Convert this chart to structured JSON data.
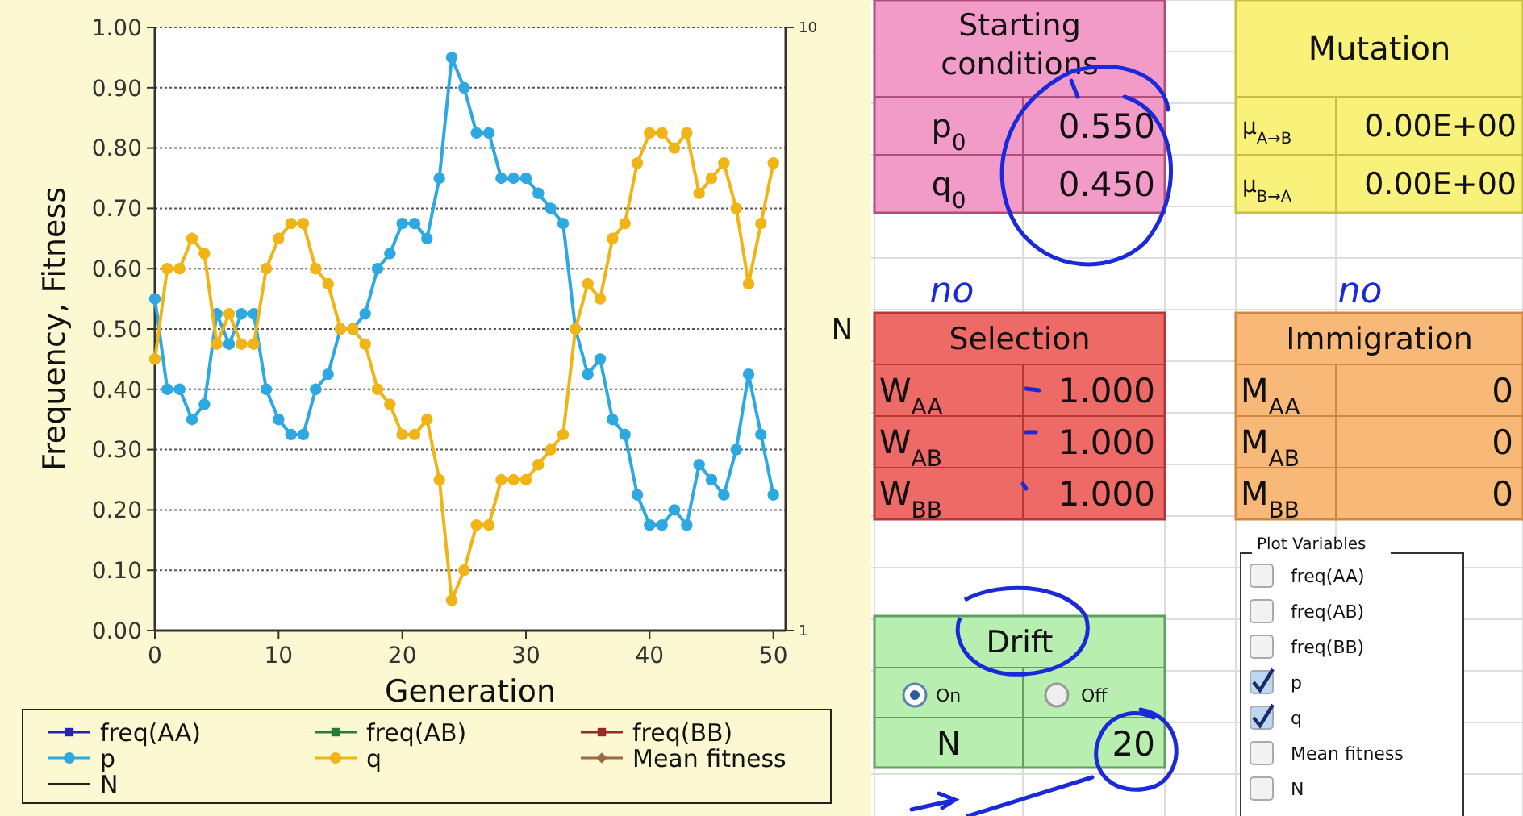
{
  "chart_data": [
    {
      "type": "line",
      "xlabel": "Generation",
      "ylabel": "Frequency, Fitness",
      "y2label": "N",
      "x": [
        0,
        1,
        2,
        3,
        4,
        5,
        6,
        7,
        8,
        9,
        10,
        11,
        12,
        13,
        14,
        15,
        16,
        17,
        18,
        19,
        20,
        21,
        22,
        23,
        24,
        25,
        26,
        27,
        28,
        29,
        30,
        31,
        32,
        33,
        34,
        35,
        36,
        37,
        38,
        39,
        40,
        41,
        42,
        43,
        44,
        45,
        46,
        47,
        48,
        49,
        50
      ],
      "xlim": [
        0,
        51
      ],
      "xticks": [
        0,
        10,
        20,
        30,
        40,
        50
      ],
      "ylim": [
        0,
        1
      ],
      "yticks": [
        {
          "value": 0,
          "label": "0.00"
        },
        {
          "value": 0.1,
          "label": "0.10"
        },
        {
          "value": 0.2,
          "label": "0.20"
        },
        {
          "value": 0.3,
          "label": "0.30"
        },
        {
          "value": 0.4,
          "label": "0.40"
        },
        {
          "value": 0.5,
          "label": "0.50"
        },
        {
          "value": 0.6,
          "label": "0.60"
        },
        {
          "value": 0.7,
          "label": "0.70"
        },
        {
          "value": 0.8,
          "label": "0.80"
        },
        {
          "value": 0.9,
          "label": "0.90"
        },
        {
          "value": 1,
          "label": "1.00"
        }
      ],
      "y2lim": [
        1,
        10
      ],
      "y2ticks": [
        1,
        10
      ],
      "grid": "y",
      "legend": "bottom",
      "line_style": "solid",
      "series": [
        {
          "name": "freq(AA)",
          "color": "#2323b8",
          "marker": "square",
          "values": [
            null,
            null,
            null,
            null,
            null,
            null,
            null,
            null,
            null,
            null,
            null,
            null,
            null,
            null,
            null,
            null,
            null,
            null,
            null,
            null,
            null,
            null,
            null,
            null,
            null,
            null,
            null,
            null,
            null,
            null,
            null,
            null,
            null,
            null,
            null,
            null,
            null,
            null,
            null,
            null,
            null,
            null,
            null,
            null,
            null,
            null,
            null,
            null,
            null,
            null,
            null
          ]
        },
        {
          "name": "freq(AB)",
          "color": "#2a7a3a",
          "marker": "square",
          "values": [
            null,
            null,
            null,
            null,
            null,
            null,
            null,
            null,
            null,
            null,
            null,
            null,
            null,
            null,
            null,
            null,
            null,
            null,
            null,
            null,
            null,
            null,
            null,
            null,
            null,
            null,
            null,
            null,
            null,
            null,
            null,
            null,
            null,
            null,
            null,
            null,
            null,
            null,
            null,
            null,
            null,
            null,
            null,
            null,
            null,
            null,
            null,
            null,
            null,
            null,
            null
          ]
        },
        {
          "name": "freq(BB)",
          "color": "#9a2a2a",
          "marker": "square",
          "values": [
            null,
            null,
            null,
            null,
            null,
            null,
            null,
            null,
            null,
            null,
            null,
            null,
            null,
            null,
            null,
            null,
            null,
            null,
            null,
            null,
            null,
            null,
            null,
            null,
            null,
            null,
            null,
            null,
            null,
            null,
            null,
            null,
            null,
            null,
            null,
            null,
            null,
            null,
            null,
            null,
            null,
            null,
            null,
            null,
            null,
            null,
            null,
            null,
            null,
            null,
            null
          ]
        },
        {
          "name": "p",
          "color": "#2ea8e0",
          "marker": "circle",
          "values": [
            0.55,
            0.4,
            0.4,
            0.35,
            0.375,
            0.525,
            0.475,
            0.525,
            0.525,
            0.4,
            0.35,
            0.325,
            0.325,
            0.4,
            0.425,
            0.5,
            0.5,
            0.525,
            0.6,
            0.625,
            0.675,
            0.675,
            0.65,
            0.75,
            0.95,
            0.9,
            0.825,
            0.825,
            0.75,
            0.75,
            0.75,
            0.725,
            0.7,
            0.675,
            0.5,
            0.425,
            0.45,
            0.35,
            0.325,
            0.225,
            0.175,
            0.175,
            0.2,
            0.175,
            0.275,
            0.25,
            0.225,
            0.3,
            0.425,
            0.325,
            0.225
          ]
        },
        {
          "name": "q",
          "color": "#f0b416",
          "marker": "circle",
          "values": [
            0.45,
            0.6,
            0.6,
            0.65,
            0.625,
            0.475,
            0.525,
            0.475,
            0.475,
            0.6,
            0.65,
            0.675,
            0.675,
            0.6,
            0.575,
            0.5,
            0.5,
            0.475,
            0.4,
            0.375,
            0.325,
            0.325,
            0.35,
            0.25,
            0.05,
            0.1,
            0.175,
            0.175,
            0.25,
            0.25,
            0.25,
            0.275,
            0.3,
            0.325,
            0.5,
            0.575,
            0.55,
            0.65,
            0.675,
            0.775,
            0.825,
            0.825,
            0.8,
            0.825,
            0.725,
            0.75,
            0.775,
            0.7,
            0.575,
            0.675,
            0.775
          ]
        },
        {
          "name": "Mean fitness",
          "color": "#9a6a40",
          "marker": "diamond",
          "values": [
            null,
            null,
            null,
            null,
            null,
            null,
            null,
            null,
            null,
            null,
            null,
            null,
            null,
            null,
            null,
            null,
            null,
            null,
            null,
            null,
            null,
            null,
            null,
            null,
            null,
            null,
            null,
            null,
            null,
            null,
            null,
            null,
            null,
            null,
            null,
            null,
            null,
            null,
            null,
            null,
            null,
            null,
            null,
            null,
            null,
            null,
            null,
            null,
            null,
            null,
            null
          ]
        },
        {
          "name": "N",
          "color": "#222222",
          "marker": "none",
          "values": [
            null,
            null,
            null,
            null,
            null,
            null,
            null,
            null,
            null,
            null,
            null,
            null,
            null,
            null,
            null,
            null,
            null,
            null,
            null,
            null,
            null,
            null,
            null,
            null,
            null,
            null,
            null,
            null,
            null,
            null,
            null,
            null,
            null,
            null,
            null,
            null,
            null,
            null,
            null,
            null,
            null,
            null,
            null,
            null,
            null,
            null,
            null,
            null,
            null,
            null,
            null
          ]
        }
      ]
    },
    {
      "type": "other",
      "annotations": [
        "Starting conditions",
        "p$_{0}$",
        "0.550",
        "q$_{0}$",
        "0.450",
        "Mutation",
        "μ$_{A→B}$",
        "0.00E+00",
        "μ$_{B→A}$",
        "0.00E+00",
        "Selection",
        "W$_{AA}$",
        "1.000",
        "W$_{AB}$",
        "1.000",
        "W$_{BB}$",
        "1.000",
        "Immigration",
        "M$_{AA}$",
        "0",
        "M$_{AB}$",
        "0",
        "M$_{BB}$",
        "0",
        "Drift",
        "On",
        "Off",
        "N",
        "20",
        "Plot Variables",
        "freq(AA)",
        "freq(AB)",
        "freq(BB)",
        "p",
        "q",
        "Mean fitness",
        "N",
        "no",
        "no"
      ]
    }
  ]
}
